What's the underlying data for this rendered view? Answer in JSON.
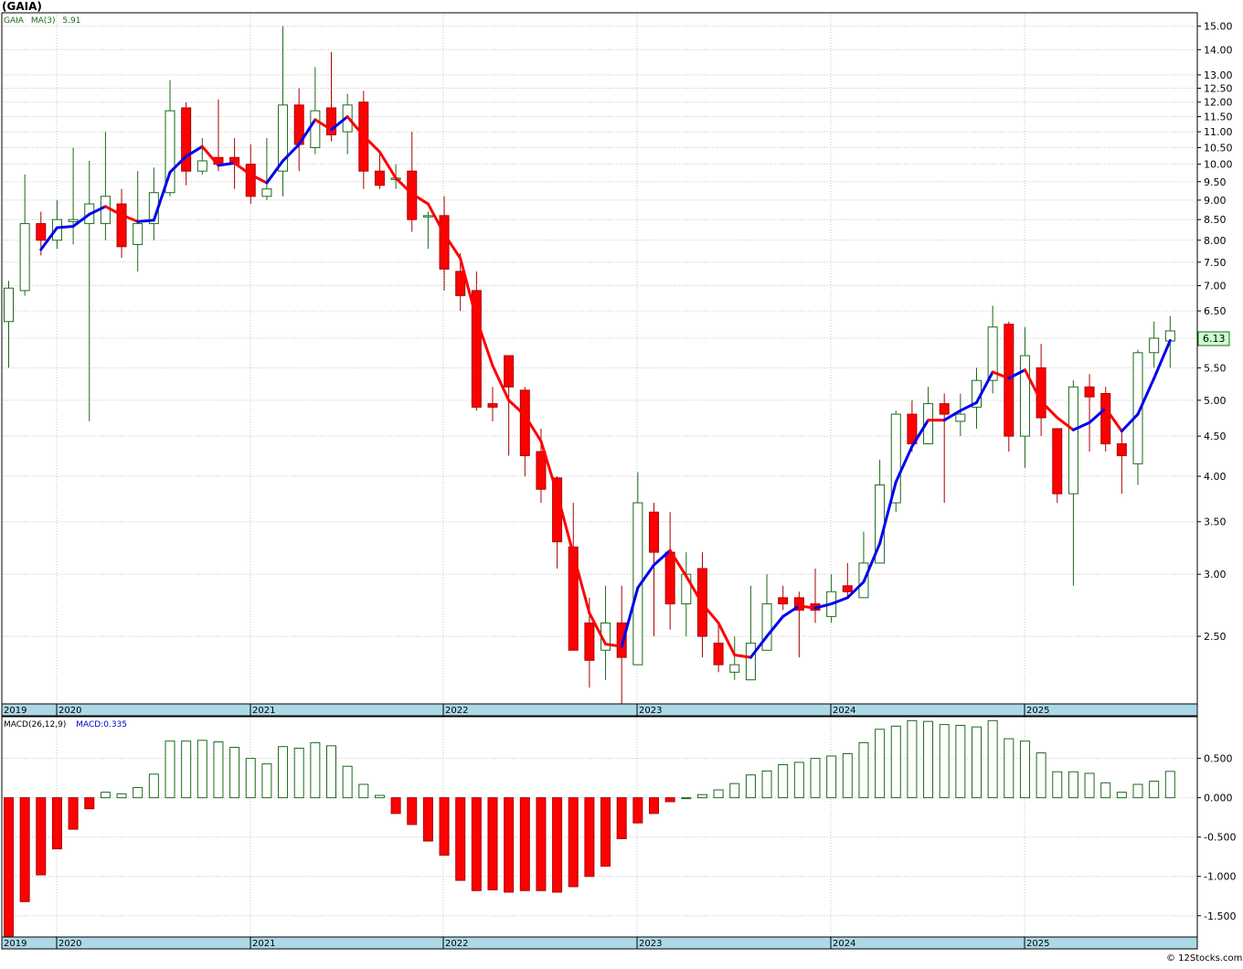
{
  "ticker_title": "(GAIA)",
  "legend": {
    "price_symbol": "GAIA",
    "ma_label": "MA(3)",
    "ma_value": "5.91",
    "macd_label": "MACD(26,12,9)",
    "macd_value": "MACD:0.335"
  },
  "last_price_label": "6.13",
  "credit": "© 12Stocks.com",
  "colors": {
    "up_candle": "#1a6b1a",
    "down_candle": "#ff0000",
    "ma_up": "#0000ee",
    "ma_down": "#ff0000",
    "axis_band": "#add8e6",
    "grid": "#c8c8c8",
    "price_tag_bg": "#ccffcc"
  },
  "chart_data": [
    {
      "type": "candlestick",
      "scale": "log",
      "ylim": [
        2.05,
        15.6
      ],
      "y_ticks": [
        "2.50",
        "3.00",
        "3.50",
        "4.00",
        "4.50",
        "5.00",
        "5.50",
        "6.00",
        "6.50",
        "7.00",
        "7.50",
        "8.00",
        "8.50",
        "9.00",
        "9.50",
        "10.00",
        "10.50",
        "11.00",
        "11.50",
        "12.00",
        "12.50",
        "13.00",
        "14.00",
        "15.00"
      ],
      "x_labels": [
        "2019",
        "2020",
        "2021",
        "2022",
        "2023",
        "2024",
        "2025"
      ],
      "moving_average": "MA(3)",
      "candles": [
        [
          6.3,
          6.95,
          5.5,
          7.1
        ],
        [
          6.9,
          8.4,
          6.8,
          9.7
        ],
        [
          8.4,
          8.0,
          7.65,
          8.7
        ],
        [
          8.0,
          8.5,
          7.8,
          9.0
        ],
        [
          8.45,
          8.5,
          7.9,
          10.5
        ],
        [
          8.4,
          8.9,
          4.7,
          10.1
        ],
        [
          8.4,
          9.1,
          8.0,
          11.0
        ],
        [
          8.9,
          7.85,
          7.6,
          9.3
        ],
        [
          7.9,
          8.4,
          7.3,
          9.8
        ],
        [
          8.4,
          9.2,
          8.0,
          9.9
        ],
        [
          9.2,
          11.7,
          9.1,
          12.8
        ],
        [
          11.8,
          9.8,
          9.4,
          12.0
        ],
        [
          9.8,
          10.1,
          9.7,
          10.8
        ],
        [
          10.2,
          10.0,
          9.8,
          12.1
        ],
        [
          10.2,
          10.0,
          9.3,
          10.8
        ],
        [
          10.0,
          9.1,
          8.9,
          10.6
        ],
        [
          9.1,
          9.3,
          9.0,
          10.8
        ],
        [
          9.8,
          11.9,
          9.1,
          15.0
        ],
        [
          11.9,
          10.6,
          9.8,
          12.5
        ],
        [
          10.5,
          11.7,
          10.3,
          13.3
        ],
        [
          11.8,
          10.9,
          10.7,
          13.9
        ],
        [
          11.0,
          11.9,
          10.3,
          12.3
        ],
        [
          12.0,
          9.8,
          9.3,
          12.4
        ],
        [
          9.8,
          9.4,
          9.3,
          10.3
        ],
        [
          9.6,
          9.6,
          9.3,
          10.0
        ],
        [
          9.8,
          8.5,
          8.2,
          11.0
        ],
        [
          8.6,
          8.6,
          7.8,
          8.7
        ],
        [
          8.6,
          7.35,
          6.9,
          9.1
        ],
        [
          7.3,
          6.8,
          6.5,
          7.7
        ],
        [
          6.9,
          4.9,
          4.85,
          7.3
        ],
        [
          4.95,
          4.9,
          4.7,
          5.2
        ],
        [
          5.7,
          5.2,
          4.25,
          5.7
        ],
        [
          5.15,
          4.25,
          4.0,
          5.2
        ],
        [
          4.3,
          3.85,
          3.7,
          4.6
        ],
        [
          3.98,
          3.3,
          3.05,
          4.0
        ],
        [
          3.25,
          2.4,
          2.4,
          3.7
        ],
        [
          2.6,
          2.33,
          2.15,
          2.8
        ],
        [
          2.4,
          2.6,
          2.2,
          2.9
        ],
        [
          2.6,
          2.35,
          2.05,
          2.9
        ],
        [
          2.3,
          3.7,
          2.3,
          4.05
        ],
        [
          3.6,
          3.2,
          2.5,
          3.7
        ],
        [
          3.2,
          2.75,
          2.55,
          3.6
        ],
        [
          2.75,
          3.0,
          2.5,
          3.2
        ],
        [
          3.05,
          2.5,
          2.35,
          3.2
        ],
        [
          2.45,
          2.3,
          2.25,
          2.6
        ],
        [
          2.25,
          2.3,
          2.2,
          2.5
        ],
        [
          2.2,
          2.45,
          2.2,
          2.9
        ],
        [
          2.4,
          2.75,
          2.4,
          3.0
        ],
        [
          2.8,
          2.75,
          2.7,
          2.9
        ],
        [
          2.8,
          2.7,
          2.35,
          2.85
        ],
        [
          2.75,
          2.7,
          2.6,
          3.05
        ],
        [
          2.65,
          2.85,
          2.6,
          3.0
        ],
        [
          2.9,
          2.85,
          2.8,
          3.1
        ],
        [
          2.8,
          3.1,
          2.8,
          3.4
        ],
        [
          3.1,
          3.9,
          3.1,
          4.2
        ],
        [
          3.7,
          4.8,
          3.6,
          4.85
        ],
        [
          4.8,
          4.4,
          4.3,
          5.0
        ],
        [
          4.4,
          4.95,
          4.4,
          5.2
        ],
        [
          4.95,
          4.8,
          3.7,
          5.1
        ],
        [
          4.7,
          4.8,
          4.5,
          5.1
        ],
        [
          4.9,
          5.3,
          4.6,
          5.5
        ],
        [
          5.3,
          6.2,
          5.1,
          6.6
        ],
        [
          6.25,
          4.5,
          4.3,
          6.3
        ],
        [
          4.5,
          5.7,
          4.1,
          6.2
        ],
        [
          5.5,
          4.75,
          4.5,
          5.9
        ],
        [
          4.6,
          3.8,
          3.7,
          4.6
        ],
        [
          3.8,
          5.2,
          2.9,
          5.3
        ],
        [
          5.2,
          5.05,
          4.3,
          5.4
        ],
        [
          5.1,
          4.4,
          4.3,
          5.2
        ],
        [
          4.4,
          4.25,
          3.8,
          4.6
        ],
        [
          4.15,
          5.75,
          3.9,
          5.8
        ],
        [
          5.75,
          6.0,
          5.5,
          6.3
        ],
        [
          5.95,
          6.13,
          5.5,
          6.4
        ]
      ]
    },
    {
      "type": "histogram",
      "title": "MACD(26,12,9)",
      "ylim": [
        -1.77,
        1.03
      ],
      "y_ticks": [
        "-1.500",
        "-1.000",
        "-0.500",
        "0.000",
        "0.500"
      ],
      "x_labels": [
        "2019",
        "2020",
        "2021",
        "2022",
        "2023",
        "2024",
        "2025"
      ],
      "values": [
        -1.8,
        -1.32,
        -0.98,
        -0.65,
        -0.4,
        -0.14,
        0.07,
        0.05,
        0.13,
        0.3,
        0.72,
        0.72,
        0.73,
        0.71,
        0.64,
        0.5,
        0.43,
        0.65,
        0.63,
        0.7,
        0.66,
        0.4,
        0.17,
        0.03,
        -0.2,
        -0.34,
        -0.55,
        -0.73,
        -1.05,
        -1.18,
        -1.17,
        -1.2,
        -1.18,
        -1.18,
        -1.2,
        -1.13,
        -1.0,
        -0.87,
        -0.52,
        -0.32,
        -0.2,
        -0.05,
        0.0,
        0.04,
        0.1,
        0.18,
        0.29,
        0.34,
        0.42,
        0.45,
        0.5,
        0.53,
        0.56,
        0.7,
        0.87,
        0.91,
        0.98,
        0.97,
        0.93,
        0.92,
        0.9,
        0.98,
        0.75,
        0.72,
        0.57,
        0.33,
        0.33,
        0.31,
        0.19,
        0.07,
        0.17,
        0.21,
        0.335
      ]
    }
  ]
}
